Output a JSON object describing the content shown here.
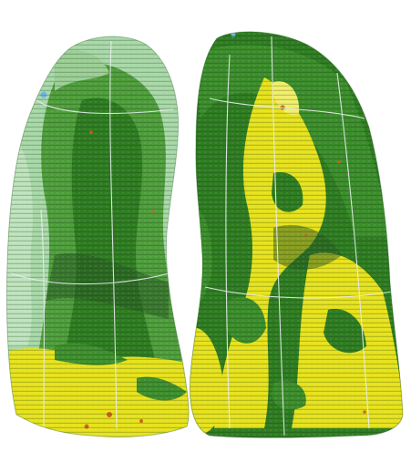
{
  "figure": {
    "description_free": true,
    "palette": {
      "background": "#ffffff",
      "light_green": "#a8d8a8",
      "mid_green": "#5aa845",
      "dark_green": "#2f7d22",
      "shadow_green": "#2a5a24",
      "yellow": "#e7e21d",
      "pale_yellow": "#f2ee6a",
      "orange_spot": "#d0631c",
      "blue_spot": "#6fb6e6",
      "grid_line": "#e9eef0"
    },
    "objects": [
      {
        "id": "left-lung",
        "kind": "lung-render"
      },
      {
        "id": "right-lung",
        "kind": "lung-render"
      }
    ]
  }
}
